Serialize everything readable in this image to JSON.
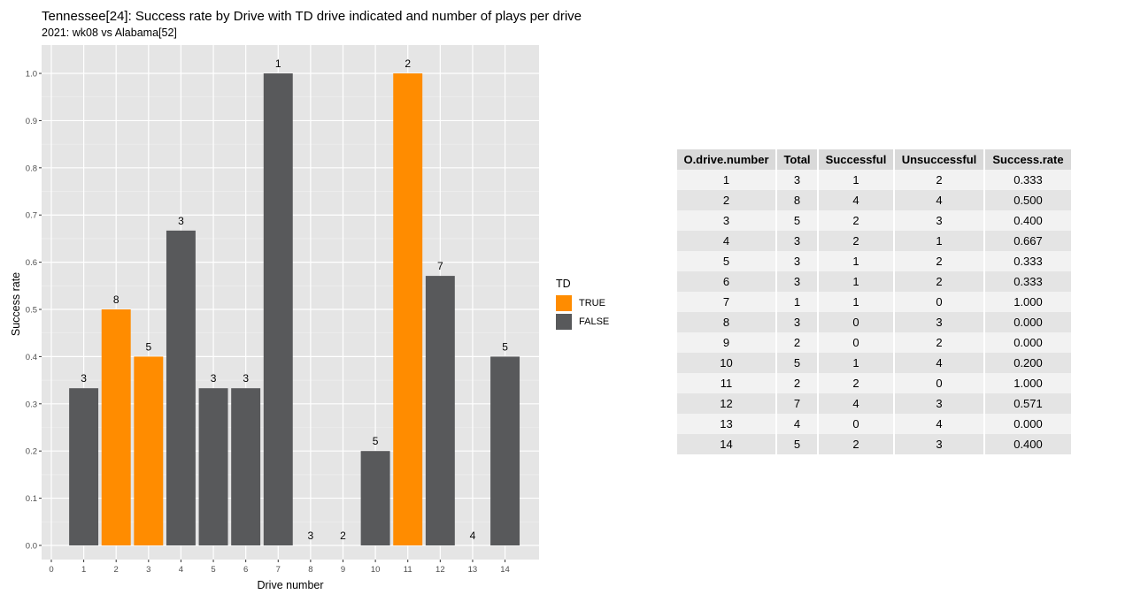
{
  "chart_data": {
    "type": "bar",
    "title": "Tennessee[24]: Success rate by Drive with TD drive indicated and number of plays per drive",
    "subtitle": "2021: wk08 vs Alabama[52]",
    "xlabel": "Drive number",
    "ylabel": "Success rate",
    "xlim": [
      0,
      15
    ],
    "ylim": [
      0,
      1.0
    ],
    "x_ticks": [
      "0",
      "1",
      "2",
      "3",
      "4",
      "5",
      "6",
      "7",
      "8",
      "9",
      "10",
      "11",
      "12",
      "13",
      "14"
    ],
    "y_ticks": [
      "0.0",
      "0.1",
      "0.2",
      "0.3",
      "0.4",
      "0.5",
      "0.6",
      "0.7",
      "0.8",
      "0.9",
      "1.0"
    ],
    "grid": true,
    "legend_placement": "right",
    "legend_title": "TD",
    "legend": [
      {
        "label": "TRUE",
        "color": "#ff8c00"
      },
      {
        "label": "FALSE",
        "color": "#58595b"
      }
    ],
    "x": [
      1,
      2,
      3,
      4,
      5,
      6,
      7,
      8,
      9,
      10,
      11,
      12,
      13,
      14
    ],
    "values": [
      0.333,
      0.5,
      0.4,
      0.667,
      0.333,
      0.333,
      1.0,
      0.0,
      0.0,
      0.2,
      1.0,
      0.571,
      0.0,
      0.4
    ],
    "td": [
      false,
      true,
      true,
      false,
      false,
      false,
      false,
      false,
      false,
      false,
      true,
      false,
      false,
      false
    ],
    "plays_labels": [
      "3",
      "8",
      "5",
      "3",
      "3",
      "3",
      "1",
      "3",
      "2",
      "5",
      "2",
      "7",
      "4",
      "5"
    ]
  },
  "table": {
    "headers": [
      "O.drive.number",
      "Total",
      "Successful",
      "Unsuccessful",
      "Success.rate"
    ],
    "rows": [
      [
        "1",
        "3",
        "1",
        "2",
        "0.333"
      ],
      [
        "2",
        "8",
        "4",
        "4",
        "0.500"
      ],
      [
        "3",
        "5",
        "2",
        "3",
        "0.400"
      ],
      [
        "4",
        "3",
        "2",
        "1",
        "0.667"
      ],
      [
        "5",
        "3",
        "1",
        "2",
        "0.333"
      ],
      [
        "6",
        "3",
        "1",
        "2",
        "0.333"
      ],
      [
        "7",
        "1",
        "1",
        "0",
        "1.000"
      ],
      [
        "8",
        "3",
        "0",
        "3",
        "0.000"
      ],
      [
        "9",
        "2",
        "0",
        "2",
        "0.000"
      ],
      [
        "10",
        "5",
        "1",
        "4",
        "0.200"
      ],
      [
        "11",
        "2",
        "2",
        "0",
        "1.000"
      ],
      [
        "12",
        "7",
        "4",
        "3",
        "0.571"
      ],
      [
        "13",
        "4",
        "0",
        "4",
        "0.000"
      ],
      [
        "14",
        "5",
        "2",
        "3",
        "0.400"
      ]
    ]
  }
}
